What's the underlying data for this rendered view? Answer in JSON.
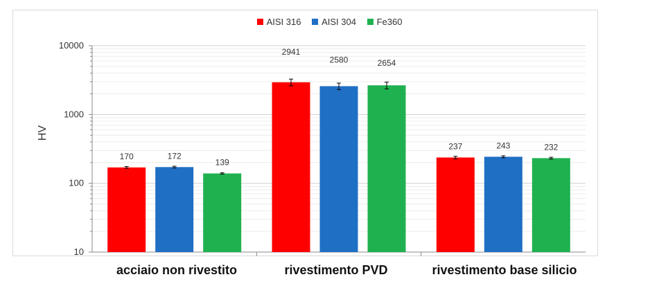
{
  "chart_data": {
    "type": "bar",
    "ylabel": "HV",
    "xlabel": "",
    "scale": "log",
    "ylim": [
      10,
      10000
    ],
    "yticks": [
      "10",
      "100",
      "1000",
      "10000"
    ],
    "categories": [
      "acciaio non rivestito",
      "rivestimento PVD",
      "rivestimento base silicio"
    ],
    "series": [
      {
        "name": "AISI 316",
        "color": "#ff0000",
        "values": [
          170,
          2941,
          237
        ],
        "labels": [
          "170",
          "2941",
          "237"
        ],
        "err": [
          5,
          330,
          10
        ]
      },
      {
        "name": "AISI 304",
        "color": "#1f6fc5",
        "values": [
          172,
          2580,
          243
        ],
        "labels": [
          "172",
          "2580",
          "243"
        ],
        "err": [
          5,
          280,
          8
        ]
      },
      {
        "name": "Fe360",
        "color": "#1fb14f",
        "values": [
          139,
          2654,
          232
        ],
        "labels": [
          "139",
          "2654",
          "232"
        ],
        "err": [
          3,
          300,
          7
        ]
      }
    ],
    "grid": true,
    "legend_position": "top-center"
  }
}
